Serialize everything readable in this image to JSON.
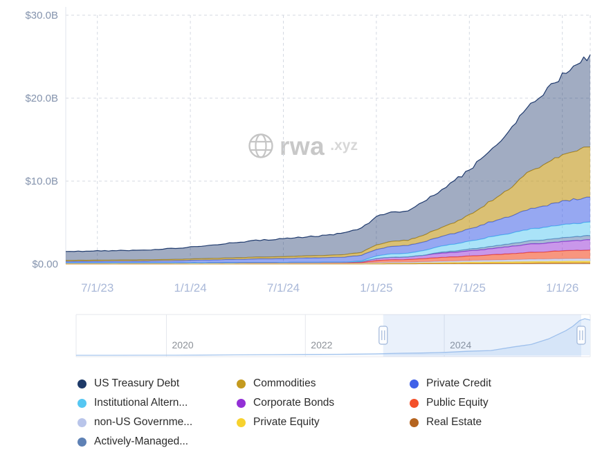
{
  "watermark": {
    "brand": "rwa",
    "tld": ".xyz"
  },
  "chart_data": {
    "type": "area",
    "stacked": true,
    "title": "",
    "xlabel": "",
    "ylabel": "",
    "ylim": [
      0,
      30
    ],
    "grid": true,
    "y_ticks": [
      {
        "v": 0,
        "label": "$0.00"
      },
      {
        "v": 10,
        "label": "$10.0B"
      },
      {
        "v": 20,
        "label": "$20.0B"
      },
      {
        "v": 30,
        "label": "$30.0B"
      }
    ],
    "x_ticks": [
      {
        "t": 2023.5,
        "label": "7/1/23"
      },
      {
        "t": 2024.0,
        "label": "1/1/24"
      },
      {
        "t": 2024.5,
        "label": "7/1/24"
      },
      {
        "t": 2025.0,
        "label": "1/1/25"
      },
      {
        "t": 2025.5,
        "label": "7/1/25"
      },
      {
        "t": 2026.0,
        "label": "1/1/26"
      }
    ],
    "x": [
      2023.33,
      2023.42,
      2023.5,
      2023.58,
      2023.67,
      2023.75,
      2023.83,
      2023.92,
      2024.0,
      2024.08,
      2024.17,
      2024.25,
      2024.33,
      2024.42,
      2024.5,
      2024.58,
      2024.67,
      2024.75,
      2024.83,
      2024.92,
      2025.0,
      2025.08,
      2025.17,
      2025.25,
      2025.33,
      2025.42,
      2025.5,
      2025.58,
      2025.67,
      2025.75,
      2025.83,
      2025.92,
      2026.0,
      2026.08,
      2026.15
    ],
    "series": [
      {
        "key": "real-estate",
        "name": "Real Estate",
        "color": "#b5641f",
        "values": [
          0.02,
          0.02,
          0.02,
          0.02,
          0.02,
          0.02,
          0.02,
          0.02,
          0.02,
          0.02,
          0.02,
          0.02,
          0.02,
          0.02,
          0.02,
          0.02,
          0.02,
          0.02,
          0.02,
          0.02,
          0.03,
          0.04,
          0.04,
          0.05,
          0.06,
          0.07,
          0.08,
          0.09,
          0.1,
          0.11,
          0.12,
          0.13,
          0.14,
          0.15,
          0.15
        ]
      },
      {
        "key": "private-equity",
        "name": "Private Equity",
        "color": "#f7d22e",
        "values": [
          0.02,
          0.02,
          0.02,
          0.02,
          0.02,
          0.02,
          0.02,
          0.02,
          0.02,
          0.02,
          0.02,
          0.02,
          0.02,
          0.02,
          0.02,
          0.02,
          0.02,
          0.02,
          0.02,
          0.02,
          0.04,
          0.06,
          0.06,
          0.08,
          0.1,
          0.12,
          0.14,
          0.15,
          0.16,
          0.17,
          0.18,
          0.19,
          0.2,
          0.2,
          0.2
        ]
      },
      {
        "key": "non-us-government-debt",
        "name": "non-US Governme...",
        "color": "#b9c5ea",
        "values": [
          0.05,
          0.05,
          0.05,
          0.05,
          0.05,
          0.05,
          0.05,
          0.05,
          0.05,
          0.05,
          0.05,
          0.05,
          0.06,
          0.06,
          0.06,
          0.06,
          0.06,
          0.06,
          0.06,
          0.06,
          0.1,
          0.12,
          0.12,
          0.14,
          0.16,
          0.18,
          0.2,
          0.22,
          0.24,
          0.26,
          0.28,
          0.29,
          0.3,
          0.3,
          0.3
        ]
      },
      {
        "key": "public-equity",
        "name": "Public Equity",
        "color": "#f4502a",
        "values": [
          0.03,
          0.03,
          0.03,
          0.03,
          0.03,
          0.03,
          0.03,
          0.03,
          0.04,
          0.04,
          0.04,
          0.04,
          0.04,
          0.04,
          0.05,
          0.05,
          0.05,
          0.05,
          0.05,
          0.08,
          0.25,
          0.3,
          0.32,
          0.38,
          0.45,
          0.5,
          0.55,
          0.6,
          0.68,
          0.75,
          0.82,
          0.88,
          0.95,
          1.0,
          1.02
        ]
      },
      {
        "key": "corporate-bonds",
        "name": "Corporate Bonds",
        "color": "#9330d6",
        "values": [
          0.02,
          0.02,
          0.02,
          0.02,
          0.02,
          0.02,
          0.02,
          0.02,
          0.03,
          0.03,
          0.04,
          0.04,
          0.05,
          0.05,
          0.05,
          0.06,
          0.06,
          0.07,
          0.08,
          0.1,
          0.25,
          0.3,
          0.32,
          0.4,
          0.5,
          0.55,
          0.62,
          0.7,
          0.8,
          0.9,
          1.0,
          1.05,
          1.15,
          1.2,
          1.25
        ]
      },
      {
        "key": "actively-managed",
        "name": "Actively-Managed...",
        "color": "#5e81b5",
        "values": [
          0,
          0,
          0,
          0,
          0,
          0,
          0,
          0,
          0,
          0,
          0,
          0,
          0,
          0,
          0,
          0,
          0,
          0,
          0,
          0,
          0,
          0,
          0,
          0,
          0.1,
          0.15,
          0.2,
          0.25,
          0.3,
          0.35,
          0.4,
          0.42,
          0.45,
          0.48,
          0.5
        ]
      },
      {
        "key": "institutional-alternative-funds",
        "name": "Institutional Altern...",
        "color": "#56c7f2",
        "values": [
          0,
          0,
          0,
          0,
          0,
          0,
          0,
          0,
          0,
          0,
          0,
          0,
          0,
          0,
          0,
          0,
          0,
          0,
          0,
          0.1,
          0.3,
          0.4,
          0.45,
          0.55,
          0.7,
          0.85,
          0.95,
          1.1,
          1.2,
          1.3,
          1.4,
          1.5,
          1.55,
          1.58,
          1.6
        ]
      },
      {
        "key": "private-credit",
        "name": "Private Credit",
        "color": "#4061e8",
        "values": [
          0.18,
          0.2,
          0.2,
          0.21,
          0.22,
          0.23,
          0.25,
          0.27,
          0.3,
          0.33,
          0.36,
          0.39,
          0.42,
          0.45,
          0.48,
          0.51,
          0.54,
          0.58,
          0.62,
          0.68,
          0.8,
          0.9,
          0.95,
          1.05,
          1.15,
          1.3,
          1.5,
          1.7,
          1.95,
          2.2,
          2.45,
          2.6,
          2.8,
          2.95,
          3.0
        ]
      },
      {
        "key": "commodities",
        "name": "Commodities",
        "color": "#c49a1f",
        "values": [
          0.12,
          0.12,
          0.13,
          0.13,
          0.13,
          0.14,
          0.14,
          0.15,
          0.16,
          0.17,
          0.18,
          0.19,
          0.2,
          0.21,
          0.22,
          0.23,
          0.25,
          0.27,
          0.3,
          0.35,
          0.55,
          0.6,
          0.62,
          0.8,
          1.0,
          1.3,
          1.7,
          2.2,
          2.9,
          3.8,
          4.6,
          5.1,
          5.6,
          5.9,
          6.2
        ]
      },
      {
        "key": "us-treasury-debt",
        "name": "US Treasury Debt",
        "color": "#1f3a6d",
        "values": [
          1.05,
          1.08,
          1.12,
          1.13,
          1.15,
          1.18,
          1.25,
          1.35,
          1.45,
          1.55,
          1.7,
          1.85,
          2.0,
          2.1,
          2.15,
          2.25,
          2.35,
          2.45,
          2.6,
          2.9,
          3.4,
          3.6,
          3.5,
          4.1,
          4.5,
          5.0,
          5.5,
          6.0,
          6.6,
          7.4,
          8.2,
          8.8,
          9.6,
          10.4,
          10.9
        ]
      }
    ]
  },
  "navigator": {
    "range": [
      2018.7,
      2026.1
    ],
    "selection": [
      2023.12,
      2025.97
    ],
    "years": [
      {
        "t": 2020,
        "label": "2020"
      },
      {
        "t": 2022,
        "label": "2022"
      },
      {
        "t": 2024,
        "label": "2024"
      }
    ],
    "x": [
      2018.7,
      2019.2,
      2019.7,
      2020,
      2020.5,
      2021,
      2021.5,
      2022,
      2022.5,
      2023,
      2023.33,
      2023.67,
      2024,
      2024.33,
      2024.67,
      2025,
      2025.25,
      2025.5,
      2025.75,
      2025.85,
      2025.95,
      2026.02,
      2026.1
    ],
    "values": [
      0,
      0.01,
      0.03,
      0.05,
      0.12,
      0.3,
      0.45,
      0.55,
      0.7,
      1.0,
      1.4,
      1.55,
      2.0,
      2.75,
      3.3,
      5.8,
      7.5,
      11.3,
      17,
      20,
      24,
      25.2,
      24.3
    ],
    "line_color": "#a6c6ee",
    "fill_color": "#e8f1fc"
  },
  "legend": {
    "columns": [
      [
        {
          "label": "US Treasury Debt",
          "color": "#1e3a68"
        },
        {
          "label": "Institutional Altern...",
          "color": "#56c7f2"
        },
        {
          "label": "non-US Governme...",
          "color": "#b9c5ea"
        },
        {
          "label": "Actively-Managed...",
          "color": "#5e81b5"
        }
      ],
      [
        {
          "label": "Commodities",
          "color": "#c49a1f"
        },
        {
          "label": "Corporate Bonds",
          "color": "#9330d6"
        },
        {
          "label": "Private Equity",
          "color": "#f7d22e"
        }
      ],
      [
        {
          "label": "Private Credit",
          "color": "#4061e8"
        },
        {
          "label": "Public Equity",
          "color": "#f4502a"
        },
        {
          "label": "Real Estate",
          "color": "#b5641f"
        }
      ]
    ]
  }
}
